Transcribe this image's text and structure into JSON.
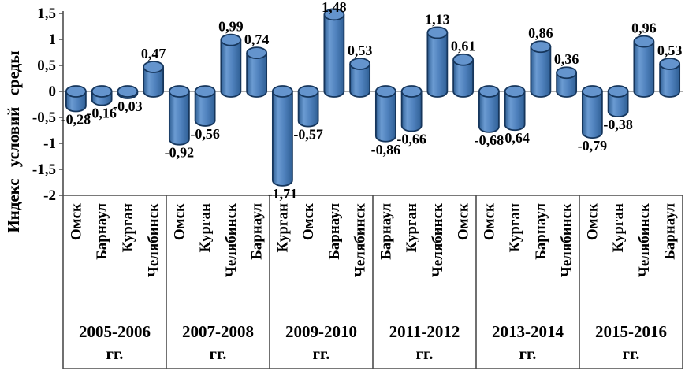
{
  "chart_data": {
    "type": "bar",
    "subtype": "cylinder",
    "title": "",
    "ylabel": "Индекс условий среды",
    "xlabel": "",
    "ylim": [
      -2,
      1.5
    ],
    "ytick_step": 0.5,
    "decimal_separator": ",",
    "grid": false,
    "legend": "none",
    "yticks": [
      {
        "value": 1.5,
        "label": "1,5"
      },
      {
        "value": 1.0,
        "label": "1"
      },
      {
        "value": 0.5,
        "label": "0,5"
      },
      {
        "value": 0.0,
        "label": "0"
      },
      {
        "value": -0.5,
        "label": "-0,5"
      },
      {
        "value": -1.0,
        "label": "-1"
      },
      {
        "value": -1.5,
        "label": "-1,5"
      },
      {
        "value": -2.0,
        "label": "-2"
      }
    ],
    "groups": [
      {
        "period": "2005-2006",
        "period_suffix": "гг.",
        "bars": [
          {
            "city": "Омск",
            "value": -0.28,
            "label": "-0,28"
          },
          {
            "city": "Барнаул",
            "value": -0.16,
            "label": "-0,16"
          },
          {
            "city": "Курган",
            "value": -0.03,
            "label": "-0,03"
          },
          {
            "city": "Челябинск",
            "value": 0.47,
            "label": "0,47"
          }
        ]
      },
      {
        "period": "2007-2008",
        "period_suffix": "гг.",
        "bars": [
          {
            "city": "Омск",
            "value": -0.92,
            "label": "-0,92"
          },
          {
            "city": "Курган",
            "value": -0.56,
            "label": "-0,56"
          },
          {
            "city": "Челябинск",
            "value": 0.99,
            "label": "0,99"
          },
          {
            "city": "Барнаул",
            "value": 0.74,
            "label": "0,74"
          }
        ]
      },
      {
        "period": "2009-2010",
        "period_suffix": "гг.",
        "bars": [
          {
            "city": "Курган",
            "value": -1.71,
            "label": "-1,71"
          },
          {
            "city": "Омск",
            "value": -0.57,
            "label": "-0,57"
          },
          {
            "city": "Барнаул",
            "value": 1.48,
            "label": "1,48"
          },
          {
            "city": "Челябинск",
            "value": 0.53,
            "label": "0,53"
          }
        ]
      },
      {
        "period": "2011-2012",
        "period_suffix": "гг.",
        "bars": [
          {
            "city": "Барнаул",
            "value": -0.86,
            "label": "-0,86"
          },
          {
            "city": "Курган",
            "value": -0.66,
            "label": "-0,66"
          },
          {
            "city": "Челябинск",
            "value": 1.13,
            "label": "1,13"
          },
          {
            "city": "Омск",
            "value": 0.61,
            "label": "0,61"
          }
        ]
      },
      {
        "period": "2013-2014",
        "period_suffix": "гг.",
        "bars": [
          {
            "city": "Омск",
            "value": -0.68,
            "label": "-0,68"
          },
          {
            "city": "Курган",
            "value": -0.64,
            "label": "-0,64"
          },
          {
            "city": "Барнаул",
            "value": 0.86,
            "label": "0,86"
          },
          {
            "city": "Челябинск",
            "value": 0.36,
            "label": "0,36"
          }
        ]
      },
      {
        "period": "2015-2016",
        "period_suffix": "гг.",
        "bars": [
          {
            "city": "Омск",
            "value": -0.79,
            "label": "-0,79"
          },
          {
            "city": "Курган",
            "value": -0.38,
            "label": "-0,38"
          },
          {
            "city": "Челябинск",
            "value": 0.96,
            "label": "0,96"
          },
          {
            "city": "Барнаул",
            "value": 0.53,
            "label": "0,53"
          }
        ]
      }
    ],
    "colors": {
      "bar_main": "#4f81bd",
      "bar_light": "#6b9bd2",
      "bar_dark": "#2f5f94",
      "bar_top": "#6494cd",
      "bar_stroke": "#16365c",
      "zero_line": "#909090",
      "frame": "#4d4d4d",
      "text": "#000000",
      "background": "#ffffff"
    }
  }
}
